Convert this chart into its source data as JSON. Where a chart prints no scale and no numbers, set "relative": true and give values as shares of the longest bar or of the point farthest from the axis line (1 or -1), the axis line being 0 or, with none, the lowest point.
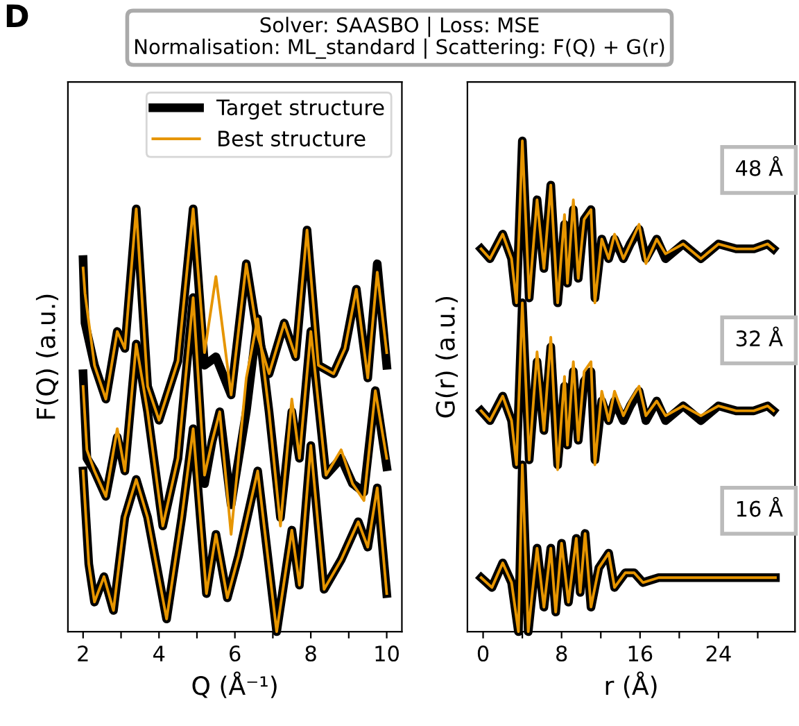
{
  "chart_data": [
    {
      "type": "line",
      "title": "Solver: SAASBO | Loss: MSE\nNormalisation: ML_standard | Scattering: F(Q) + G(r)",
      "xlabel": "Q (Å⁻¹)",
      "ylabel": "F(Q) (a.u.)",
      "relative": true,
      "annotations": [
        "D"
      ],
      "legend": "top right",
      "xlim": [
        1.6,
        10.4
      ],
      "xticks": [
        2,
        {
          "value": 3,
          "label": null
        },
        4,
        {
          "value": 5,
          "label": null
        },
        6,
        {
          "value": 7,
          "label": null
        },
        8,
        {
          "value": 9,
          "label": null
        },
        10
      ],
      "series": [
        {
          "name": "Target structure",
          "color": "#000000",
          "x": [
            2.0,
            2.05,
            2.3,
            2.6,
            2.9,
            3.1,
            3.4,
            3.7,
            4.0,
            4.5,
            4.9,
            5.2,
            5.5,
            5.9,
            6.3,
            6.6,
            6.9,
            7.3,
            7.6,
            7.9,
            8.2,
            8.6,
            8.9,
            9.2,
            9.5,
            9.75,
            10.0
          ],
          "values": [
            0.88,
            0.73,
            0.63,
            0.55,
            0.71,
            0.67,
            1.0,
            0.58,
            0.5,
            0.64,
            1.0,
            0.63,
            0.65,
            0.56,
            0.87,
            0.7,
            0.61,
            0.73,
            0.65,
            0.95,
            0.63,
            0.61,
            0.67,
            0.81,
            0.6,
            0.87,
            0.63
          ]
        },
        {
          "name": "Best structure",
          "color": "#e69500",
          "x": [
            2.0,
            2.05,
            2.3,
            2.6,
            2.9,
            3.1,
            3.4,
            3.7,
            4.0,
            4.5,
            4.9,
            5.2,
            5.5,
            5.9,
            6.3,
            6.6,
            6.9,
            7.3,
            7.6,
            7.9,
            8.2,
            8.6,
            8.9,
            9.2,
            9.5,
            9.75,
            10.0
          ],
          "values": [
            0.86,
            0.8,
            0.63,
            0.55,
            0.71,
            0.67,
            1.0,
            0.58,
            0.5,
            0.64,
            1.0,
            0.66,
            0.84,
            0.56,
            0.87,
            0.7,
            0.61,
            0.73,
            0.65,
            0.95,
            0.63,
            0.61,
            0.67,
            0.81,
            0.6,
            0.85,
            0.66
          ]
        },
        {
          "color": "#000000",
          "x": [
            2.0,
            2.1,
            2.3,
            2.6,
            2.9,
            3.1,
            3.4,
            3.7,
            4.1,
            4.5,
            4.9,
            5.2,
            5.4,
            5.6,
            5.9,
            6.3,
            6.6,
            6.9,
            7.2,
            7.5,
            7.7,
            8.0,
            8.4,
            8.8,
            9.1,
            9.4,
            9.7,
            10.0
          ],
          "values": [
            0.61,
            0.41,
            0.38,
            0.32,
            0.46,
            0.38,
            0.68,
            0.52,
            0.25,
            0.41,
            0.79,
            0.35,
            0.45,
            0.52,
            0.3,
            0.52,
            0.74,
            0.52,
            0.27,
            0.52,
            0.41,
            0.71,
            0.37,
            0.41,
            0.35,
            0.33,
            0.57,
            0.39
          ]
        },
        {
          "color": "#e69500",
          "x": [
            2.0,
            2.1,
            2.3,
            2.6,
            2.9,
            3.1,
            3.4,
            3.7,
            4.1,
            4.5,
            4.9,
            5.2,
            5.4,
            5.6,
            5.9,
            6.3,
            6.6,
            6.9,
            7.2,
            7.5,
            7.7,
            8.0,
            8.4,
            8.8,
            9.1,
            9.4,
            9.7,
            10.0
          ],
          "values": [
            0.58,
            0.43,
            0.38,
            0.32,
            0.48,
            0.38,
            0.68,
            0.52,
            0.25,
            0.41,
            0.79,
            0.37,
            0.45,
            0.52,
            0.23,
            0.6,
            0.74,
            0.52,
            0.25,
            0.55,
            0.41,
            0.71,
            0.37,
            0.43,
            0.35,
            0.31,
            0.57,
            0.41
          ]
        },
        {
          "color": "#000000",
          "x": [
            2.0,
            2.15,
            2.3,
            2.55,
            2.8,
            3.1,
            3.4,
            3.7,
            4.2,
            4.6,
            4.9,
            5.25,
            5.5,
            5.8,
            6.1,
            6.6,
            7.1,
            7.5,
            7.7,
            8.0,
            8.35,
            8.8,
            9.25,
            9.5,
            9.75,
            10.0
          ],
          "values": [
            0.38,
            0.16,
            0.07,
            0.13,
            0.05,
            0.27,
            0.36,
            0.27,
            0.03,
            0.27,
            0.48,
            0.09,
            0.23,
            0.08,
            0.18,
            0.38,
            0.0,
            0.24,
            0.11,
            0.44,
            0.1,
            0.17,
            0.26,
            0.2,
            0.34,
            0.09
          ]
        },
        {
          "color": "#e69500",
          "x": [
            2.0,
            2.15,
            2.3,
            2.55,
            2.8,
            3.1,
            3.4,
            3.7,
            4.2,
            4.6,
            4.9,
            5.25,
            5.5,
            5.8,
            6.1,
            6.6,
            7.1,
            7.5,
            7.7,
            8.0,
            8.35,
            8.8,
            9.25,
            9.5,
            9.75,
            10.0
          ],
          "values": [
            0.38,
            0.16,
            0.07,
            0.13,
            0.05,
            0.27,
            0.36,
            0.27,
            0.03,
            0.27,
            0.48,
            0.09,
            0.23,
            0.08,
            0.18,
            0.38,
            0.0,
            0.24,
            0.11,
            0.44,
            0.1,
            0.17,
            0.26,
            0.2,
            0.34,
            0.09
          ]
        }
      ]
    },
    {
      "type": "line",
      "xlabel": "r (Å)",
      "ylabel": "G(r) (a.u.)",
      "relative": true,
      "annotations": [
        "48 Å",
        "32 Å",
        "16 Å"
      ],
      "xlim": [
        -1.6,
        31.8
      ],
      "xticks": [
        0,
        {
          "value": 4,
          "label": null
        },
        8,
        {
          "value": 12,
          "label": null
        },
        16,
        {
          "value": 20,
          "label": null
        },
        24,
        {
          "value": 28,
          "label": null
        }
      ],
      "series": [
        {
          "color": "#000000",
          "x": [
            -0.2,
            0.7,
            2.0,
            2.9,
            3.4,
            4.0,
            4.7,
            5.5,
            6.2,
            6.9,
            7.6,
            8.3,
            8.6,
            9.2,
            9.7,
            10.3,
            11.0,
            11.4,
            12.1,
            12.8,
            13.4,
            14.3,
            15.0,
            15.9,
            16.6,
            17.7,
            18.6,
            20.4,
            22.2,
            24.0,
            25.8,
            27.6,
            29.0,
            29.6
          ],
          "values": [
            0.78,
            0.76,
            0.81,
            0.76,
            0.67,
            1.0,
            0.68,
            0.88,
            0.74,
            0.91,
            0.67,
            0.83,
            0.71,
            0.86,
            0.72,
            0.84,
            0.86,
            0.68,
            0.8,
            0.76,
            0.8,
            0.76,
            0.79,
            0.82,
            0.76,
            0.8,
            0.76,
            0.79,
            0.76,
            0.79,
            0.78,
            0.78,
            0.79,
            0.78
          ]
        },
        {
          "color": "#e69500",
          "x": [
            -0.2,
            0.7,
            2.0,
            2.9,
            3.4,
            4.0,
            4.7,
            5.5,
            6.2,
            6.9,
            7.6,
            8.3,
            8.6,
            9.2,
            9.7,
            10.3,
            11.0,
            11.4,
            12.1,
            12.8,
            13.4,
            14.3,
            15.0,
            15.9,
            16.6,
            17.7,
            18.6,
            20.4,
            22.2,
            24.0,
            25.8,
            27.6,
            29.0,
            29.6
          ],
          "values": [
            0.78,
            0.76,
            0.81,
            0.76,
            0.67,
            1.0,
            0.68,
            0.88,
            0.74,
            0.91,
            0.67,
            0.85,
            0.71,
            0.88,
            0.72,
            0.84,
            0.86,
            0.67,
            0.8,
            0.76,
            0.81,
            0.76,
            0.79,
            0.83,
            0.75,
            0.8,
            0.77,
            0.79,
            0.76,
            0.79,
            0.78,
            0.78,
            0.79,
            0.78
          ]
        },
        {
          "color": "#000000",
          "x": [
            -0.2,
            0.7,
            2.0,
            2.9,
            3.4,
            4.0,
            4.7,
            5.5,
            6.2,
            6.9,
            7.6,
            8.3,
            8.6,
            9.2,
            9.7,
            10.3,
            11.0,
            11.4,
            12.1,
            12.8,
            13.4,
            14.3,
            15.0,
            15.9,
            16.6,
            17.7,
            18.6,
            20.4,
            22.2,
            24.0,
            25.8,
            27.6,
            29.0,
            29.6
          ],
          "values": [
            0.45,
            0.43,
            0.48,
            0.43,
            0.34,
            0.67,
            0.35,
            0.55,
            0.41,
            0.58,
            0.34,
            0.5,
            0.38,
            0.53,
            0.39,
            0.51,
            0.53,
            0.35,
            0.47,
            0.43,
            0.47,
            0.43,
            0.46,
            0.49,
            0.43,
            0.47,
            0.43,
            0.46,
            0.43,
            0.46,
            0.45,
            0.45,
            0.46,
            0.45
          ]
        },
        {
          "color": "#e69500",
          "x": [
            -0.2,
            0.7,
            2.0,
            2.9,
            3.4,
            4.0,
            4.7,
            5.5,
            6.2,
            6.9,
            7.6,
            8.3,
            8.6,
            9.2,
            9.7,
            10.3,
            11.0,
            11.4,
            12.1,
            12.8,
            13.4,
            14.3,
            15.0,
            15.9,
            16.6,
            17.7,
            18.6,
            20.4,
            22.2,
            24.0,
            25.8,
            27.6,
            29.0,
            29.6
          ],
          "values": [
            0.45,
            0.43,
            0.48,
            0.43,
            0.34,
            0.67,
            0.35,
            0.57,
            0.41,
            0.6,
            0.33,
            0.52,
            0.38,
            0.55,
            0.39,
            0.53,
            0.55,
            0.34,
            0.49,
            0.43,
            0.49,
            0.44,
            0.47,
            0.5,
            0.44,
            0.47,
            0.44,
            0.46,
            0.44,
            0.46,
            0.45,
            0.45,
            0.46,
            0.45
          ]
        },
        {
          "color": "#000000",
          "x": [
            -0.2,
            0.9,
            2.0,
            2.9,
            3.6,
            4.0,
            4.6,
            5.5,
            6.2,
            6.9,
            7.4,
            8.0,
            8.7,
            9.5,
            9.9,
            10.4,
            11.0,
            11.8,
            12.8,
            13.4,
            14.5,
            15.4,
            16.3,
            17.9,
            19.2,
            21.7,
            24.0,
            26.7,
            29.8
          ],
          "values": [
            0.11,
            0.09,
            0.14,
            0.1,
            0.0,
            0.34,
            0.0,
            0.17,
            0.05,
            0.17,
            0.04,
            0.18,
            0.06,
            0.19,
            0.08,
            0.2,
            0.05,
            0.13,
            0.16,
            0.09,
            0.12,
            0.12,
            0.1,
            0.11,
            0.11,
            0.11,
            0.11,
            0.11,
            0.11
          ]
        },
        {
          "color": "#e69500",
          "x": [
            -0.2,
            0.9,
            2.0,
            2.9,
            3.6,
            4.0,
            4.6,
            5.5,
            6.2,
            6.9,
            7.4,
            8.0,
            8.7,
            9.5,
            9.9,
            10.4,
            11.0,
            11.8,
            12.8,
            13.4,
            14.5,
            15.4,
            16.3,
            17.9,
            19.2,
            21.7,
            24.0,
            26.7,
            29.8
          ],
          "values": [
            0.11,
            0.09,
            0.14,
            0.1,
            0.0,
            0.34,
            0.0,
            0.17,
            0.05,
            0.17,
            0.04,
            0.18,
            0.06,
            0.19,
            0.08,
            0.2,
            0.05,
            0.13,
            0.16,
            0.09,
            0.12,
            0.12,
            0.1,
            0.11,
            0.11,
            0.11,
            0.11,
            0.11,
            0.11
          ]
        }
      ]
    }
  ]
}
